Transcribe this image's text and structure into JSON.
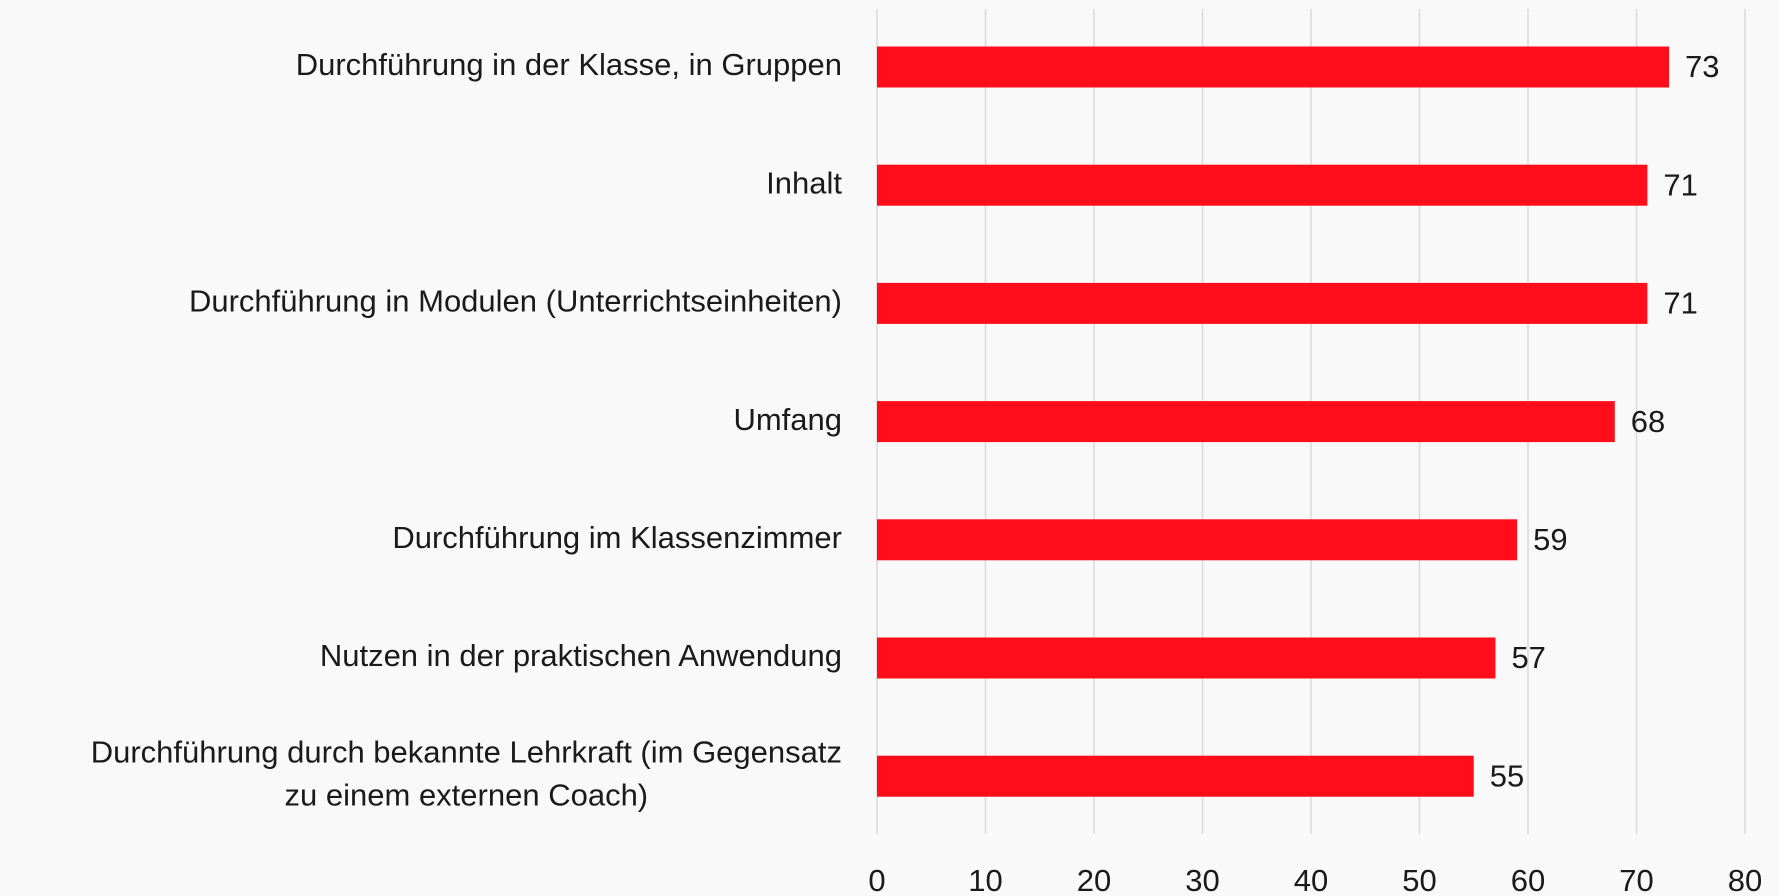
{
  "chart_data": {
    "type": "hbar",
    "categories": [
      "Durchführung in der Klasse, in Gruppen",
      "Inhalt",
      "Durchführung in Modulen (Unterrichtseinheiten)",
      "Umfang",
      "Durchführung im Klassenzimmer",
      "Nutzen in der praktischen Anwendung",
      "Durchführung durch bekannte Lehrkraft (im Gegensatz\nzu einem externen Coach)"
    ],
    "values": [
      73,
      71,
      71,
      68,
      59,
      57,
      55
    ],
    "color": "#ff0d1a",
    "xlim": [
      0,
      80
    ],
    "xticks": [
      0,
      10,
      20,
      30,
      40,
      50,
      60,
      70,
      80
    ],
    "grid": true
  }
}
